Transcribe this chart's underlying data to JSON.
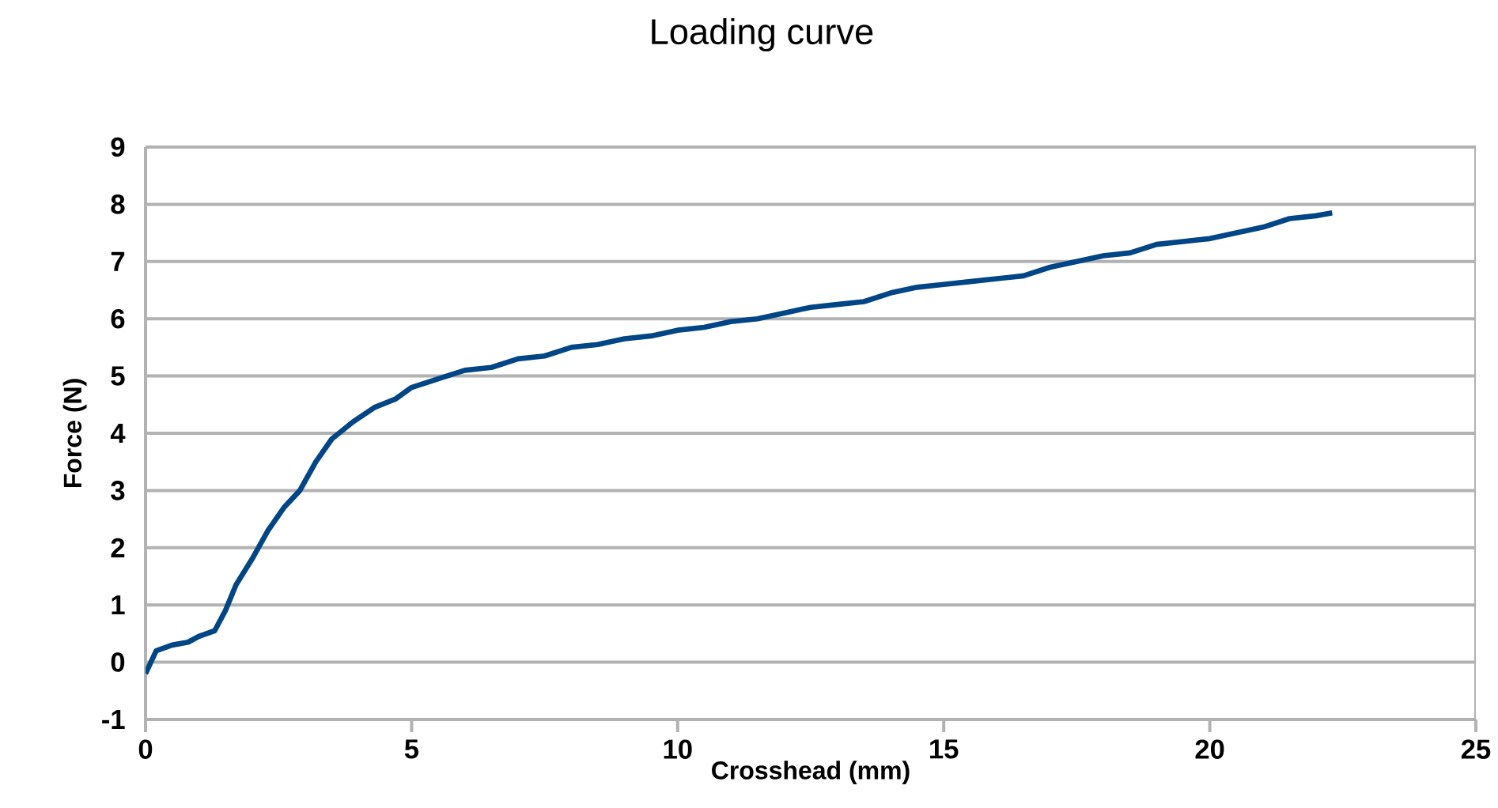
{
  "chart_data": {
    "type": "line",
    "title": "Loading curve",
    "xlabel": "Crosshead (mm)",
    "ylabel": "Force (N)",
    "xlim": [
      0,
      25
    ],
    "xticks": [
      0,
      5,
      10,
      15,
      20,
      25
    ],
    "ylim": [
      -1,
      9
    ],
    "yticks": [
      -1,
      0,
      1,
      2,
      3,
      4,
      5,
      6,
      7,
      8,
      9
    ],
    "grid": "y",
    "marker": "none",
    "line_style": "solid",
    "series": [
      {
        "color": "#004586",
        "x": [
          0,
          0.2,
          0.5,
          0.8,
          1.0,
          1.3,
          1.5,
          1.7,
          2.0,
          2.3,
          2.6,
          2.9,
          3.2,
          3.5,
          3.9,
          4.3,
          4.7,
          5.0,
          5.5,
          6.0,
          6.5,
          7.0,
          7.5,
          8.0,
          8.5,
          9.0,
          9.5,
          10.0,
          10.5,
          11.0,
          11.5,
          12.0,
          12.5,
          13.0,
          13.5,
          14.0,
          14.5,
          15.0,
          15.5,
          16.0,
          16.5,
          17.0,
          17.5,
          18.0,
          18.5,
          19.0,
          19.5,
          20.0,
          20.5,
          21.0,
          21.5,
          22.0,
          22.3
        ],
        "values": [
          -0.2,
          0.2,
          0.3,
          0.35,
          0.45,
          0.55,
          0.9,
          1.35,
          1.8,
          2.3,
          2.7,
          3.0,
          3.5,
          3.9,
          4.2,
          4.45,
          4.6,
          4.8,
          4.95,
          5.1,
          5.15,
          5.3,
          5.35,
          5.5,
          5.55,
          5.65,
          5.7,
          5.8,
          5.85,
          5.95,
          6.0,
          6.1,
          6.2,
          6.25,
          6.3,
          6.45,
          6.55,
          6.6,
          6.65,
          6.7,
          6.75,
          6.9,
          7.0,
          7.1,
          7.15,
          7.3,
          7.35,
          7.4,
          7.5,
          7.6,
          7.75,
          7.8,
          7.85
        ]
      }
    ]
  }
}
